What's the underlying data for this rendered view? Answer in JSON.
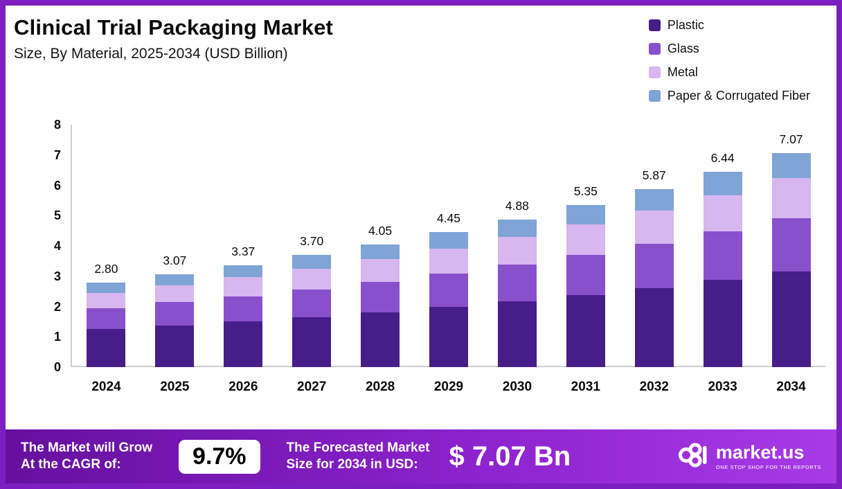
{
  "header": {
    "title_bold": "Clinical Trial Packaging",
    "title_regular": " Market",
    "subtitle": "Size, By Material, 2025-2034 (USD Billion)"
  },
  "legend": [
    {
      "label": "Plastic",
      "color": "#471d8a"
    },
    {
      "label": "Glass",
      "color": "#8950cc"
    },
    {
      "label": "Metal",
      "color": "#d8b6f0"
    },
    {
      "label": "Paper & Corrugated Fiber",
      "color": "#7fa4d6"
    }
  ],
  "chart_data": {
    "type": "bar",
    "stacked": true,
    "title": "Clinical Trial Packaging Market Size, By Material, 2025-2034 (USD Billion)",
    "xlabel": "",
    "ylabel": "",
    "ylim": [
      0,
      8
    ],
    "yticks": [
      0,
      1,
      2,
      3,
      4,
      5,
      6,
      7,
      8
    ],
    "grid": false,
    "legend_position": "top-right",
    "categories": [
      "2024",
      "2025",
      "2026",
      "2027",
      "2028",
      "2029",
      "2030",
      "2031",
      "2032",
      "2033",
      "2034"
    ],
    "totals": [
      "2.80",
      "3.07",
      "3.37",
      "3.70",
      "4.05",
      "4.45",
      "4.88",
      "5.35",
      "5.87",
      "6.44",
      "7.07"
    ],
    "series": [
      {
        "name": "Plastic",
        "values": [
          1.25,
          1.37,
          1.5,
          1.65,
          1.8,
          1.98,
          2.17,
          2.38,
          2.61,
          2.87,
          3.15
        ]
      },
      {
        "name": "Glass",
        "values": [
          0.7,
          0.77,
          0.84,
          0.92,
          1.01,
          1.11,
          1.22,
          1.33,
          1.47,
          1.61,
          1.77
        ]
      },
      {
        "name": "Metal",
        "values": [
          0.5,
          0.55,
          0.63,
          0.68,
          0.76,
          0.83,
          0.9,
          1.0,
          1.09,
          1.19,
          1.31
        ]
      },
      {
        "name": "Paper & Corrugated Fiber",
        "values": [
          0.35,
          0.38,
          0.4,
          0.45,
          0.48,
          0.53,
          0.59,
          0.64,
          0.7,
          0.77,
          0.84
        ]
      }
    ]
  },
  "footer": {
    "cagr_label_line1": "The Market will Grow",
    "cagr_label_line2": "At the CAGR of:",
    "cagr_value": "9.7%",
    "forecast_label_line1": "The Forecasted Market",
    "forecast_label_line2": "Size for 2034 in USD:",
    "forecast_value": "$ 7.07 Bn",
    "brand_name": "market.us",
    "brand_tagline": "One Stop Shop For The Reports"
  }
}
